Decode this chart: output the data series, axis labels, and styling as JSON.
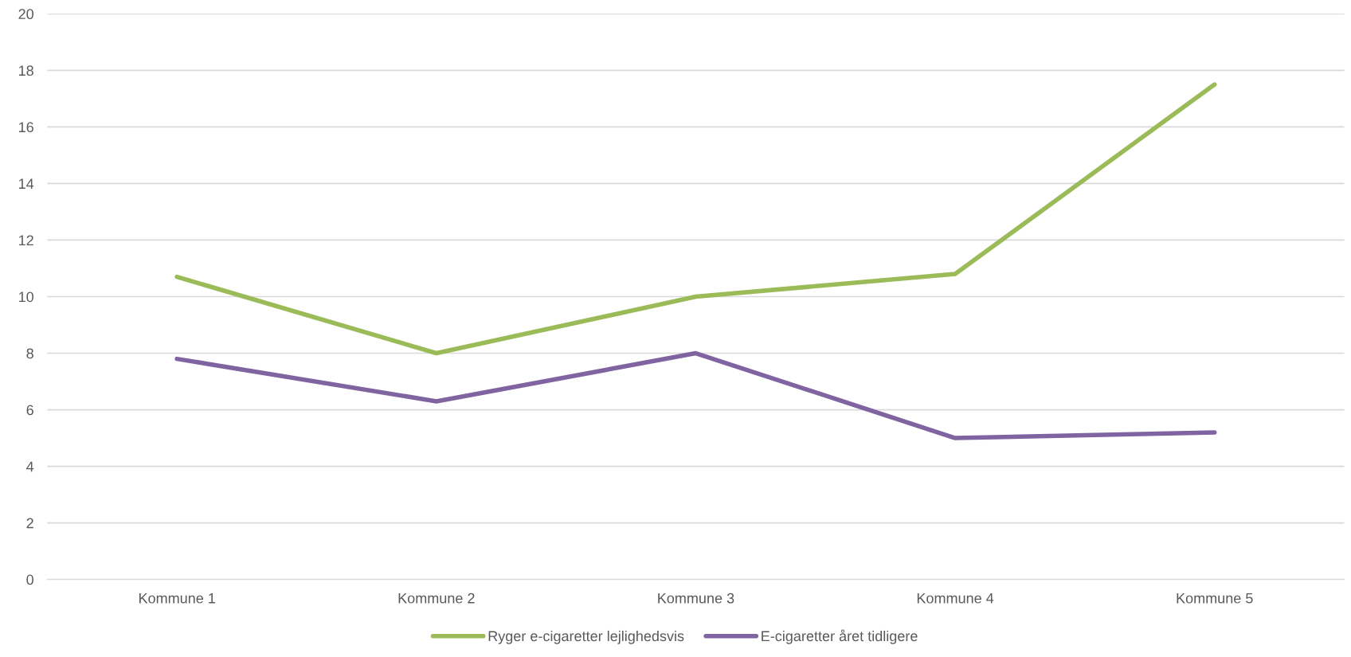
{
  "chart_data": {
    "type": "line",
    "categories": [
      "Kommune 1",
      "Kommune 2",
      "Kommune 3",
      "Kommune 4",
      "Kommune 5"
    ],
    "series": [
      {
        "name": "Ryger e-cigaretter lejlighedsvis",
        "color": "#9bbb59",
        "values": [
          10.7,
          8.0,
          10.0,
          10.8,
          17.5
        ]
      },
      {
        "name": "E-cigaretter året tidligere",
        "color": "#8064a2",
        "values": [
          7.8,
          6.3,
          8.0,
          5.0,
          5.2
        ]
      }
    ],
    "ylim": [
      0,
      20
    ],
    "yticks": [
      0,
      2,
      4,
      6,
      8,
      10,
      12,
      14,
      16,
      18,
      20
    ],
    "grid": "y",
    "legend": "bottom",
    "line_style": "solid",
    "marker": "none"
  }
}
